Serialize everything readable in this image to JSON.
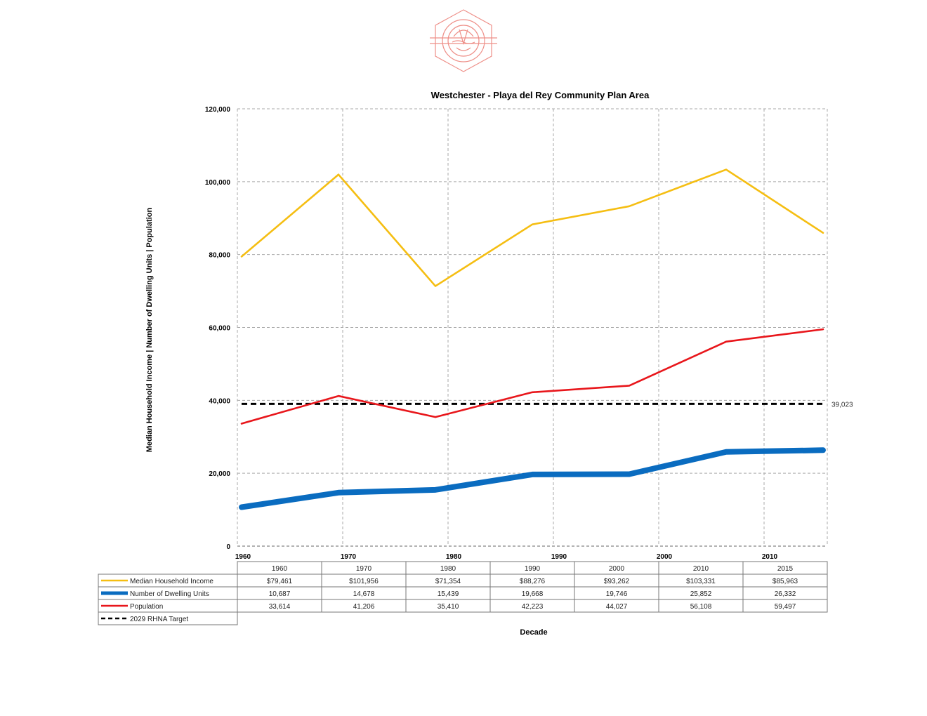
{
  "chart_data": {
    "type": "line",
    "title": "Westchester - Playa del Rey Community Plan Area",
    "xlabel": "Decade",
    "ylabel": "Median Household Income | Number of Dwelling Units | Population",
    "x": [
      "1960",
      "1970",
      "1980",
      "1990",
      "2000",
      "2010",
      "2015"
    ],
    "x_axis_ticks": [
      "1960",
      "1970",
      "1980",
      "1990",
      "2000",
      "2010"
    ],
    "ylim": [
      0,
      120000
    ],
    "y_ticks": [
      0,
      20000,
      40000,
      60000,
      80000,
      100000,
      120000
    ],
    "y_tick_labels": [
      "0",
      "20,000",
      "40,000",
      "60,000",
      "80,000",
      "100,000",
      "120,000"
    ],
    "grid": true,
    "series": [
      {
        "name": "Median Household Income",
        "color": "#F5BE12",
        "values": [
          79461,
          101956,
          71354,
          88276,
          93262,
          103331,
          85963
        ],
        "labels": [
          "$79,461",
          "$101,956",
          "$71,354",
          "$88,276",
          "$93,262",
          "$103,331",
          "$85,963"
        ]
      },
      {
        "name": "Number of Dwelling Units",
        "color": "#0A6CC0",
        "values": [
          10687,
          14678,
          15439,
          19668,
          19746,
          25852,
          26332
        ],
        "labels": [
          "10,687",
          "14,678",
          "15,439",
          "19,668",
          "19,746",
          "25,852",
          "26,332"
        ]
      },
      {
        "name": "Population",
        "color": "#E8161B",
        "values": [
          33614,
          41206,
          35410,
          42223,
          44027,
          56108,
          59497
        ],
        "labels": [
          "33,614",
          "41,206",
          "35,410",
          "42,223",
          "44,027",
          "56,108",
          "59,497"
        ]
      }
    ],
    "target": {
      "name": "2029 RHNA Target",
      "value": 39023,
      "label": "39,023",
      "color": "#000000"
    }
  }
}
